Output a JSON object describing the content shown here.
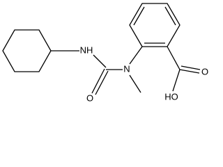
{
  "nodes": [
    {
      "label": "NH"
    },
    {
      "label": "N"
    },
    {
      "label": "O"
    },
    {
      "label": "HO"
    },
    {
      "label": "O"
    }
  ]
}
